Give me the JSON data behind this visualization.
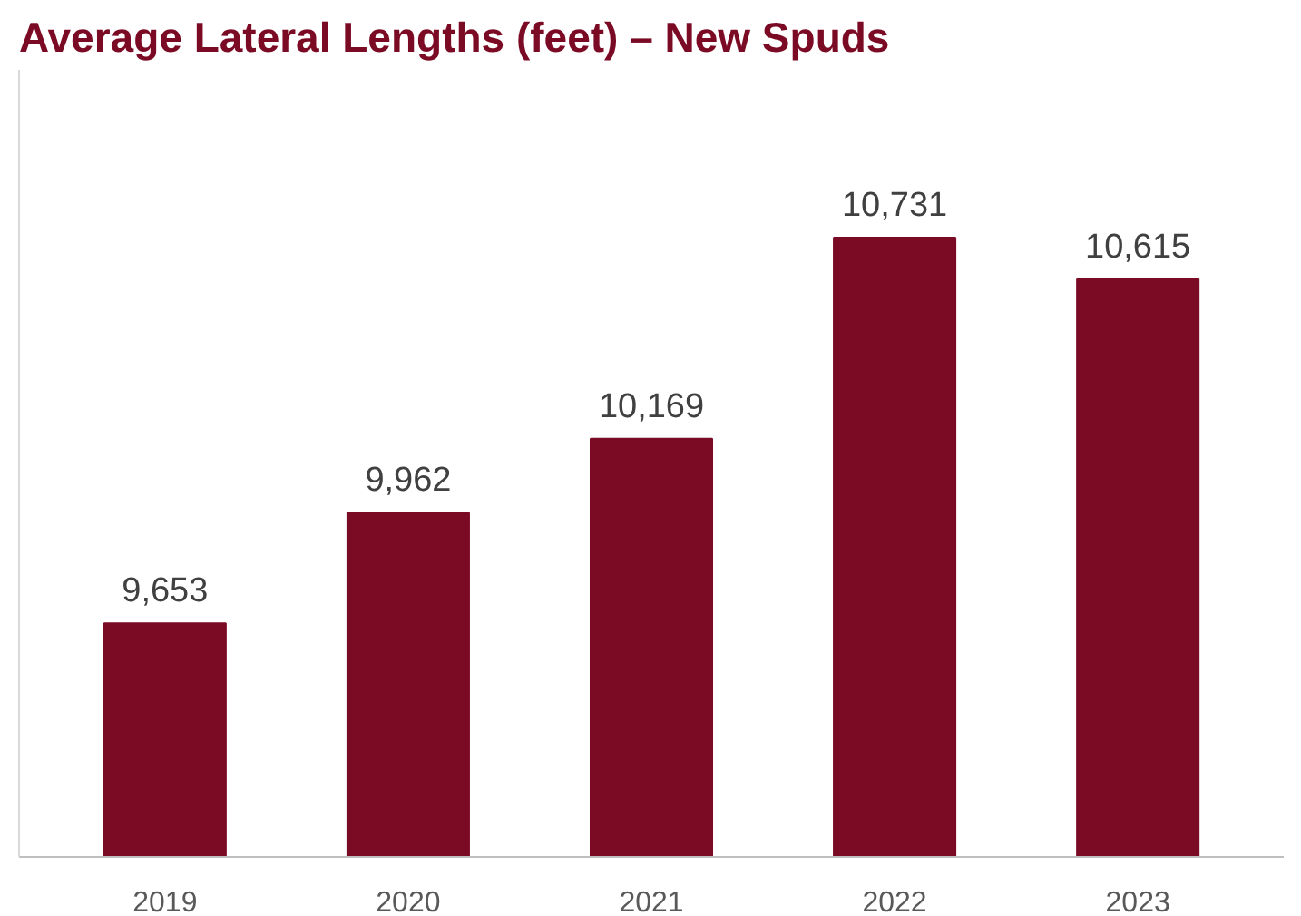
{
  "chart_data": {
    "type": "bar",
    "title": "Average Lateral Lengths (feet) – New Spuds",
    "categories": [
      "2019",
      "2020",
      "2021",
      "2022",
      "2023"
    ],
    "values": [
      9653,
      9962,
      10169,
      10731,
      10615
    ],
    "value_labels": [
      "9,653",
      "9,962",
      "10,169",
      "10,731",
      "10,615"
    ],
    "color": "#7b0a24",
    "ylim": [
      9000,
      11200
    ]
  }
}
